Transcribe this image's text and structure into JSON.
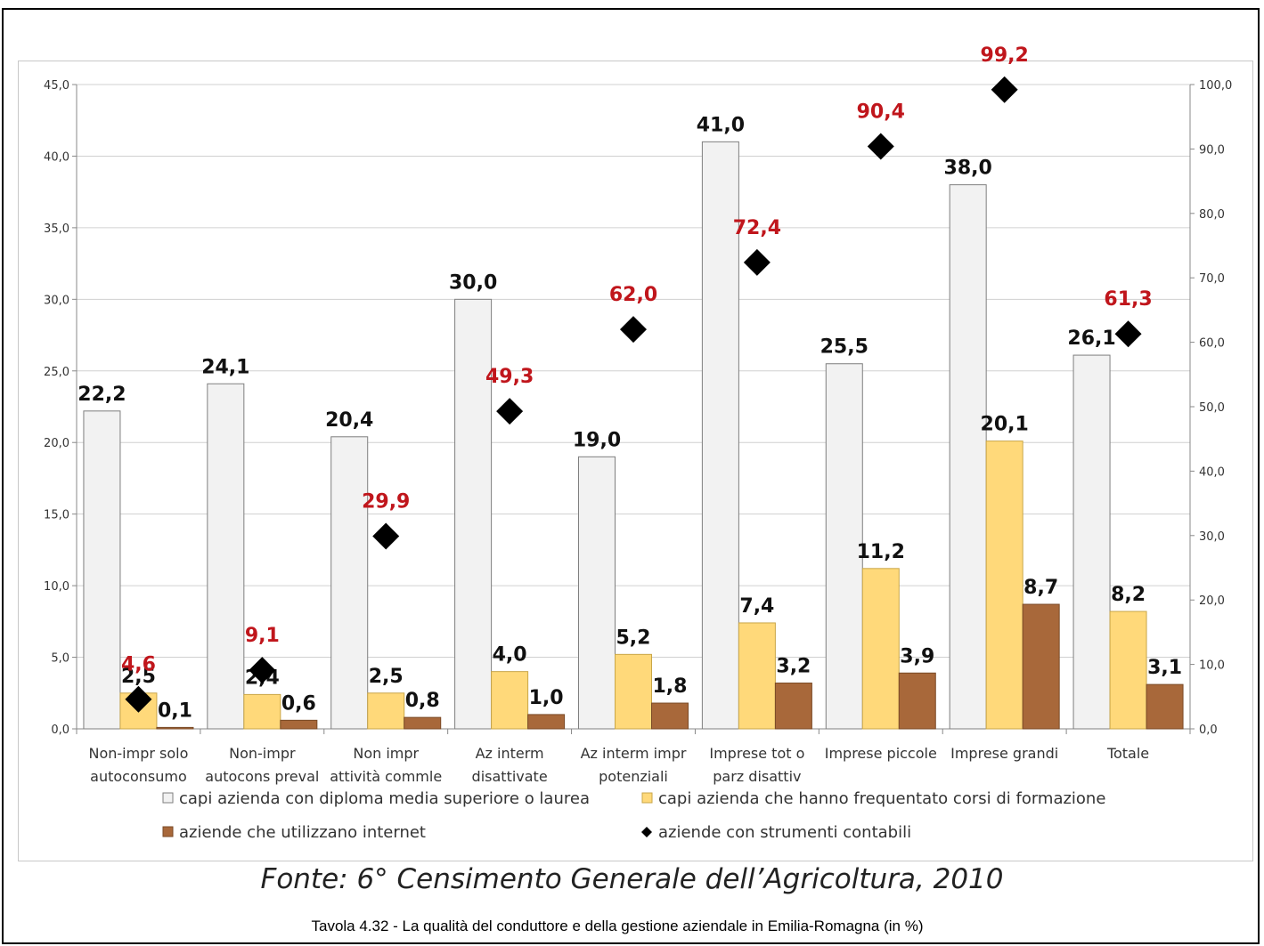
{
  "chart_data": {
    "type": "bar",
    "categories": [
      [
        "Non-impr solo",
        "autoconsumo"
      ],
      [
        "Non-impr",
        "autocons preval"
      ],
      [
        "Non impr",
        "attività commle"
      ],
      [
        "Az interm",
        "disattivate"
      ],
      [
        "Az interm impr",
        "potenziali"
      ],
      [
        "Imprese tot o",
        "parz disattiv"
      ],
      [
        "Imprese piccole"
      ],
      [
        "Imprese grandi"
      ],
      [
        "Totale"
      ]
    ],
    "series": [
      {
        "name": "capi azienda con diploma media superiore o laurea",
        "axis": "left",
        "kind": "bar",
        "color": "#f2f2f2",
        "stroke": "#7f7f7f",
        "values": [
          22.2,
          24.1,
          20.4,
          30.0,
          19.0,
          41.0,
          25.5,
          38.0,
          26.1
        ],
        "labels": [
          "22,2",
          "24,1",
          "20,4",
          "30,0",
          "19,0",
          "41,0",
          "25,5",
          "38,0",
          "26,1"
        ]
      },
      {
        "name": "capi azienda che hanno frequentato corsi di formazione",
        "axis": "left",
        "kind": "bar",
        "color": "#ffd97a",
        "stroke": "#c9a648",
        "values": [
          2.5,
          2.4,
          2.5,
          4.0,
          5.2,
          7.4,
          11.2,
          20.1,
          8.2
        ],
        "labels": [
          "2,5",
          "2,4",
          "2,5",
          "4,0",
          "5,2",
          "7,4",
          "11,2",
          "20,1",
          "8,2"
        ]
      },
      {
        "name": "aziende che utilizzano internet",
        "axis": "left",
        "kind": "bar",
        "color": "#a8683a",
        "stroke": "#7a4a26",
        "values": [
          0.1,
          0.6,
          0.8,
          1.0,
          1.8,
          3.2,
          3.9,
          8.7,
          3.1
        ],
        "labels": [
          "0,1",
          "0,6",
          "0,8",
          "1,0",
          "1,8",
          "3,2",
          "3,9",
          "8,7",
          "3,1"
        ]
      },
      {
        "name": "aziende con strumenti contabili",
        "axis": "right",
        "kind": "marker",
        "color": "#000000",
        "values": [
          4.6,
          9.1,
          29.9,
          49.3,
          62.0,
          72.4,
          90.4,
          99.2,
          61.3
        ],
        "labels": [
          "4,6",
          "9,1",
          "29,9",
          "49,3",
          "62,0",
          "72,4",
          "90,4",
          "99,2",
          "61,3"
        ]
      }
    ],
    "y_left": {
      "min": 0,
      "max": 45,
      "step": 5,
      "ticks": [
        "0,0",
        "5,0",
        "10,0",
        "15,0",
        "20,0",
        "25,0",
        "30,0",
        "35,0",
        "40,0",
        "45,0"
      ]
    },
    "y_right": {
      "min": 0,
      "max": 100,
      "step": 10,
      "ticks": [
        "0,0",
        "10,0",
        "20,0",
        "30,0",
        "40,0",
        "50,0",
        "60,0",
        "70,0",
        "80,0",
        "90,0",
        "100,0"
      ]
    },
    "grid": true,
    "legend_position": "bottom",
    "marker_label_color": "#c0161c"
  },
  "source": "Fonte: 6° Censimento Generale dell’Agricoltura, 2010",
  "caption": "Tavola 4.32 - La qualità del conduttore e della gestione aziendale in Emilia-Romagna (in %)"
}
